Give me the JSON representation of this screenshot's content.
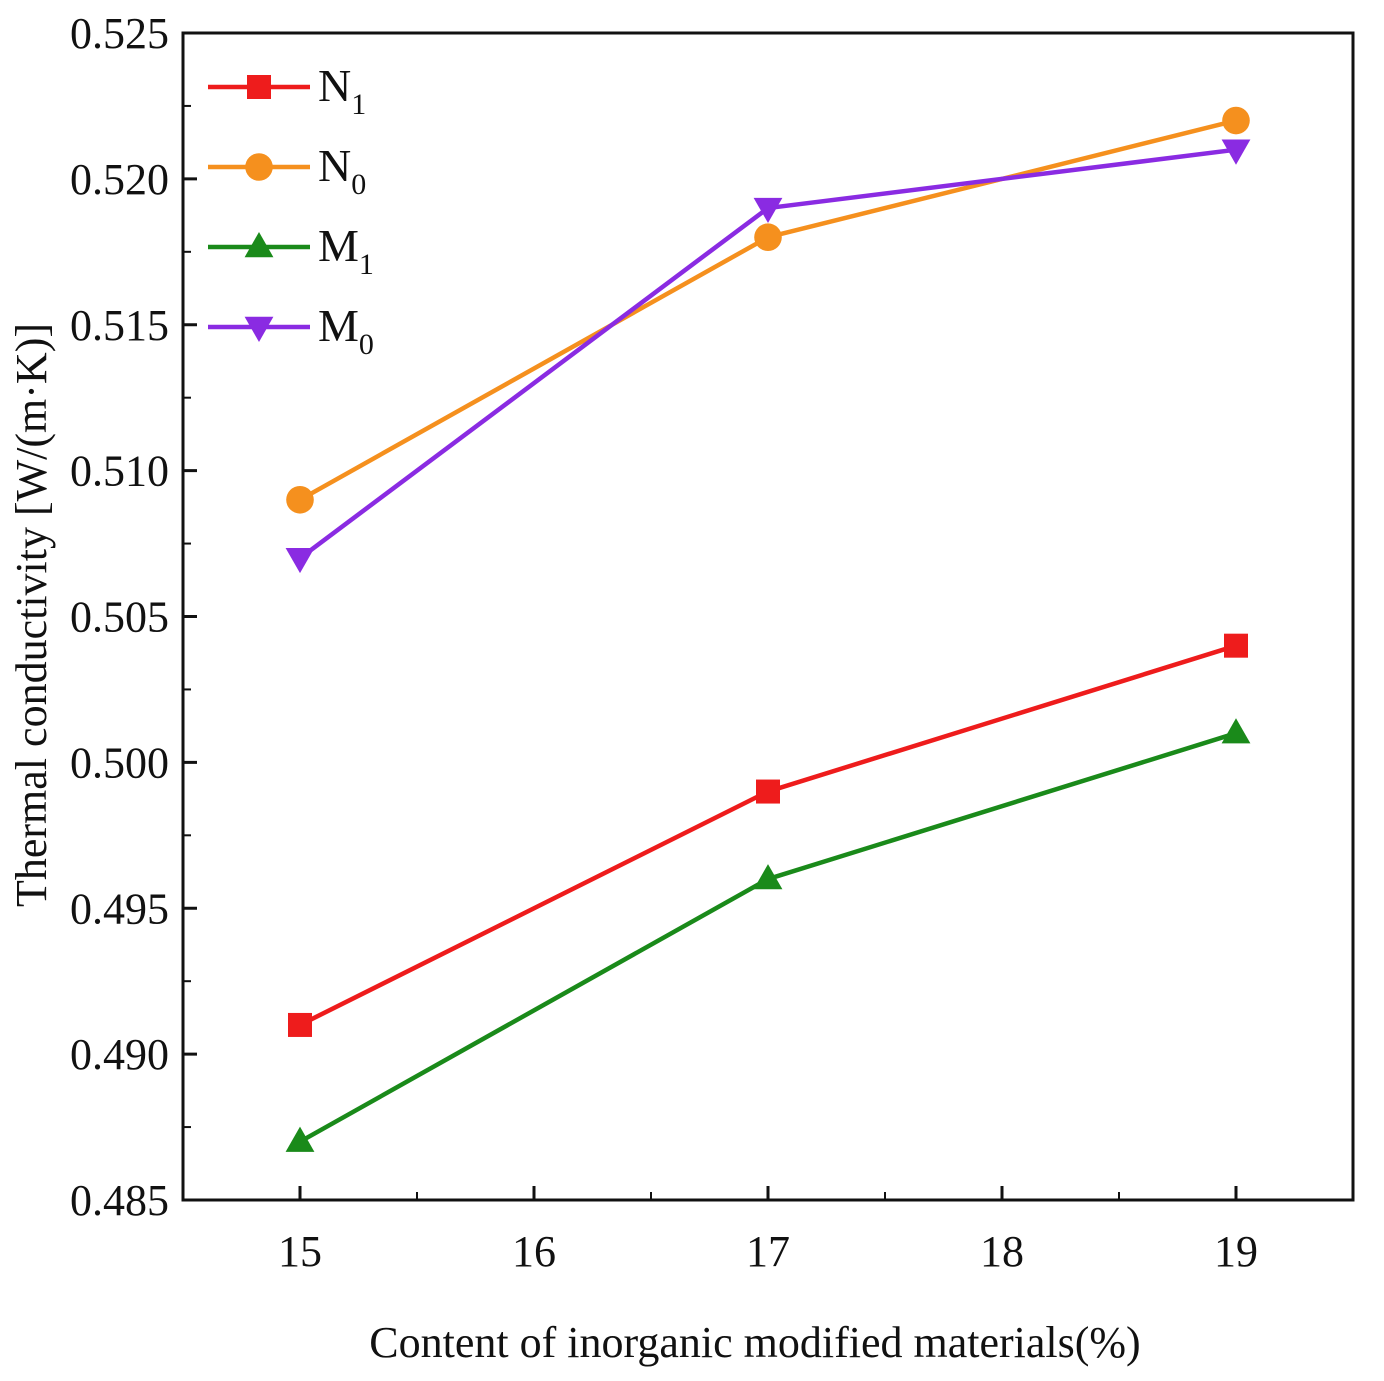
{
  "chart_data": {
    "type": "line",
    "title": "",
    "xlabel": "Content of inorganic modified materials(%)",
    "ylabel": "Thermal conductivity [W/(m·K)]",
    "x": [
      15,
      17,
      19
    ],
    "xlim": [
      14.5,
      19.5
    ],
    "ylim": [
      0.485,
      0.525
    ],
    "xticks": [
      "15",
      "16",
      "17",
      "18",
      "19"
    ],
    "xtick_values": [
      15,
      16,
      17,
      18,
      19
    ],
    "yticks": [
      "0.485",
      "0.490",
      "0.495",
      "0.500",
      "0.505",
      "0.510",
      "0.515",
      "0.520",
      "0.525"
    ],
    "ytick_values": [
      0.485,
      0.49,
      0.495,
      0.5,
      0.505,
      0.51,
      0.515,
      0.52,
      0.525
    ],
    "grid": false,
    "legend_position": "top-left",
    "series": [
      {
        "name": "N",
        "subscript": "1",
        "marker": "square",
        "color": "#ee1c1c",
        "values": [
          0.491,
          0.499,
          0.504
        ]
      },
      {
        "name": "N",
        "subscript": "0",
        "marker": "circle",
        "color": "#f5901e",
        "values": [
          0.509,
          0.518,
          0.522
        ]
      },
      {
        "name": "M",
        "subscript": "1",
        "marker": "triangle-up",
        "color": "#1a8a1a",
        "values": [
          0.487,
          0.496,
          0.501
        ]
      },
      {
        "name": "M",
        "subscript": "0",
        "marker": "triangle-down",
        "color": "#8a2be2",
        "values": [
          0.507,
          0.519,
          0.521
        ]
      }
    ]
  }
}
